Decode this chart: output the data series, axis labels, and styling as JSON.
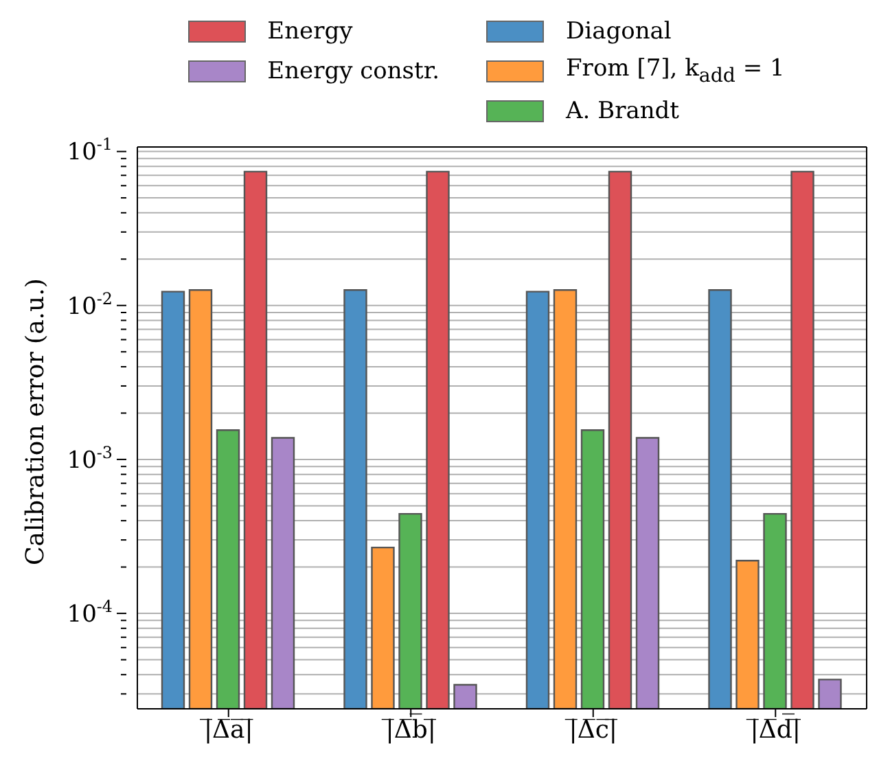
{
  "chart_data": {
    "type": "bar",
    "ylabel": "Calibration error (a.u.)",
    "categories": [
      "|̅Δ̅a̅|̅",
      "|̅Δ̅b̅|̅",
      "|̅Δ̅c̅|̅",
      "|̅Δ̅d̅|̅"
    ],
    "series": [
      {
        "name": "Diagonal",
        "color": "#4b8fc4",
        "values": [
          0.0123,
          0.0126,
          0.0123,
          0.0126
        ]
      },
      {
        "name": "From [7], k$_{add}$ = 1",
        "color": "#ff9b3d",
        "values": [
          0.0126,
          0.000268,
          0.0126,
          0.00022
        ]
      },
      {
        "name": "A. Brandt",
        "color": "#56b356",
        "values": [
          0.00155,
          0.000443,
          0.00155,
          0.000443
        ]
      },
      {
        "name": "Energy",
        "color": "#dd5157",
        "values": [
          0.074,
          0.074,
          0.074,
          0.074
        ]
      },
      {
        "name": "Energy constr.",
        "color": "#a886c8",
        "values": [
          0.00138,
          3.44e-05,
          0.00138,
          3.72e-05
        ]
      }
    ],
    "log": "y",
    "ylim": [
      2.4e-05,
      0.107
    ],
    "yticks": [
      {
        "value": 3e-05,
        "label": null
      },
      {
        "value": 4e-05,
        "label": null
      },
      {
        "value": 5e-05,
        "label": null
      },
      {
        "value": 6e-05,
        "label": null
      },
      {
        "value": 7e-05,
        "label": null
      },
      {
        "value": 8e-05,
        "label": null
      },
      {
        "value": 9e-05,
        "label": null
      },
      {
        "value": 0.0001,
        "label": "10$^{-4}$"
      },
      {
        "value": 0.0002,
        "label": null
      },
      {
        "value": 0.0003,
        "label": null
      },
      {
        "value": 0.0004,
        "label": null
      },
      {
        "value": 0.0005,
        "label": null
      },
      {
        "value": 0.0006,
        "label": null
      },
      {
        "value": 0.0007,
        "label": null
      },
      {
        "value": 0.0008,
        "label": null
      },
      {
        "value": 0.0009,
        "label": null
      },
      {
        "value": 0.001,
        "label": "10$^{-3}$"
      },
      {
        "value": 0.002,
        "label": null
      },
      {
        "value": 0.003,
        "label": null
      },
      {
        "value": 0.004,
        "label": null
      },
      {
        "value": 0.005,
        "label": null
      },
      {
        "value": 0.006,
        "label": null
      },
      {
        "value": 0.007,
        "label": null
      },
      {
        "value": 0.008,
        "label": null
      },
      {
        "value": 0.009,
        "label": null
      },
      {
        "value": 0.01,
        "label": "10$^{-2}$"
      },
      {
        "value": 0.02,
        "label": null
      },
      {
        "value": 0.03,
        "label": null
      },
      {
        "value": 0.04,
        "label": null
      },
      {
        "value": 0.05,
        "label": null
      },
      {
        "value": 0.06,
        "label": null
      },
      {
        "value": 0.07,
        "label": null
      },
      {
        "value": 0.08,
        "label": null
      },
      {
        "value": 0.09,
        "label": null
      },
      {
        "value": 0.1,
        "label": "10$^{-1}$"
      }
    ],
    "grid": "y",
    "legend": "top"
  }
}
